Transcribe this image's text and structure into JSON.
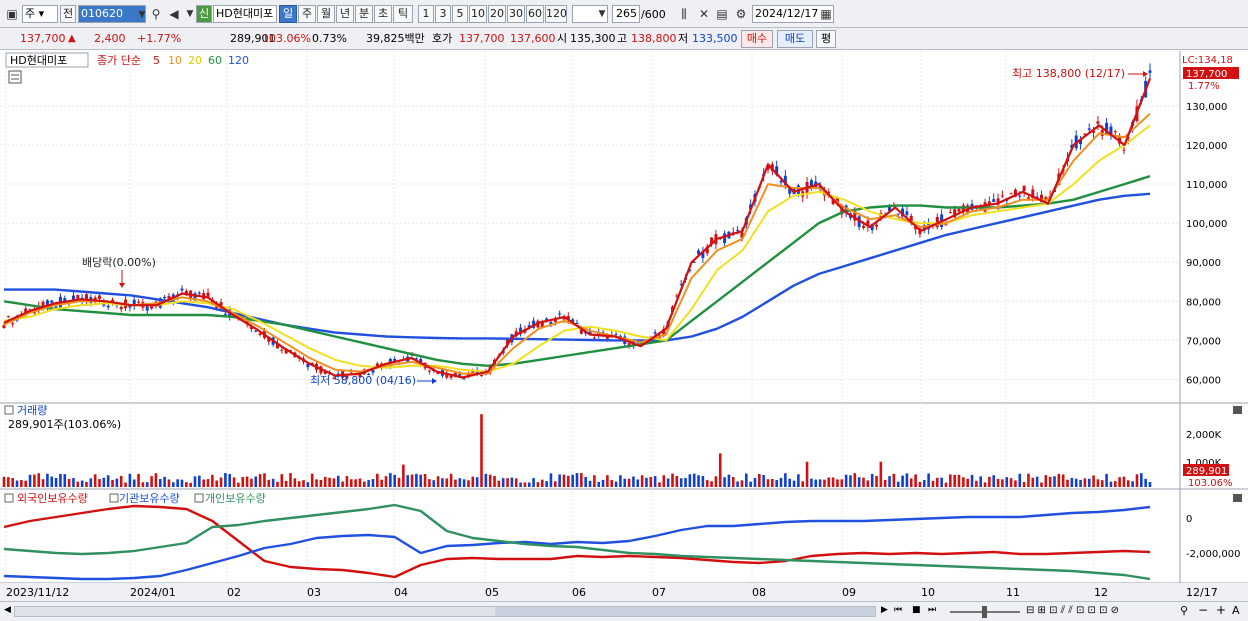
{
  "toolbar": {
    "market": "주",
    "prev_label": "전",
    "code": "010620",
    "new_badge": "신",
    "name": "HD현대미포",
    "periods": [
      "일",
      "주",
      "월",
      "년",
      "분",
      "초",
      "틱"
    ],
    "selected_period": "일",
    "intervals": [
      "1",
      "3",
      "5",
      "10",
      "20",
      "30",
      "60",
      "120"
    ],
    "count": "265",
    "count_total": "/600",
    "date": "2024/12/17"
  },
  "quote": {
    "price": "137,700",
    "arrow": "▲",
    "change": "2,400",
    "change_pct": "+1.77%",
    "volume": "289,901",
    "volume_ratio": "103.06%",
    "turnover": "0.73%",
    "amount": "39,825백만",
    "ask_label": "호가",
    "ask": "137,700",
    "bid": "137,600",
    "open_label": "시",
    "open": "135,300",
    "high_label": "고",
    "high": "138,800",
    "low_label": "저",
    "low": "133,500",
    "buy": "매수",
    "sell": "매도",
    "eval": "평"
  },
  "price_panel": {
    "name": "HD현대미포",
    "legend_title": "종가 단순",
    "ma": [
      {
        "period": "5",
        "color": "#d21010"
      },
      {
        "period": "10",
        "color": "#f09020"
      },
      {
        "period": "20",
        "color": "#f0e020"
      },
      {
        "period": "60",
        "color": "#209040"
      },
      {
        "period": "120",
        "color": "#2050e0"
      }
    ],
    "lc_label": "LC:134,18",
    "last_price": "137,700",
    "last_pct": "1.77%",
    "high_annotation": "최고 138,800 (12/17)",
    "low_annotation": "최저 58,800 (04/16)",
    "dividend_annotation": "배당락(0.00%)",
    "y_ticks": [
      "130,000",
      "120,000",
      "110,000",
      "100,000",
      "90,000",
      "80,000",
      "70,000",
      "60,000"
    ]
  },
  "volume_panel": {
    "title": "거래량",
    "value": "289,901주(103.06%)",
    "y_ticks": [
      "2,000K",
      "1,000K"
    ],
    "last_volume": "289,901",
    "last_pct": "103.06%"
  },
  "holding_panel": {
    "legend": [
      {
        "label": "외국인보유수량",
        "color": "#d21010"
      },
      {
        "label": "기관보유수량",
        "color": "#2050e0"
      },
      {
        "label": "개인보유수량",
        "color": "#309060"
      }
    ],
    "y_ticks": [
      "0",
      "-2,000,000"
    ]
  },
  "x_axis": {
    "labels": [
      "2023/11/12",
      "2024/01",
      "02",
      "03",
      "04",
      "05",
      "06",
      "07",
      "08",
      "09",
      "10",
      "11",
      "12"
    ],
    "end_label": "12/17"
  },
  "colors": {
    "up": "#d21010",
    "down": "#1040d0",
    "accent": "#3c78c8"
  },
  "chart_data": {
    "type": "line",
    "title": "HD현대미포",
    "ylim": [
      55000,
      142000
    ],
    "ma_series": [
      {
        "name": "5",
        "values": [
          74500,
          77500,
          79500,
          80500,
          80000,
          79000,
          79000,
          82000,
          81000,
          76500,
          72500,
          68000,
          64000,
          61000,
          61500,
          64000,
          65500,
          62000,
          60500,
          62000,
          71000,
          74500,
          76000,
          71500,
          71000,
          68500,
          73000,
          90000,
          96000,
          98000,
          115000,
          108000,
          110000,
          103000,
          99000,
          104000,
          98000,
          101000,
          104000,
          105000,
          108000,
          105000,
          120000,
          125000,
          120000,
          137000
        ]
      },
      {
        "name": "10",
        "values": [
          74000,
          77000,
          79000,
          80000,
          80000,
          79000,
          79500,
          81000,
          80000,
          77000,
          73500,
          69500,
          65500,
          62500,
          62000,
          63500,
          64500,
          63000,
          61500,
          61500,
          68000,
          73000,
          75000,
          72500,
          71000,
          69500,
          71500,
          86000,
          93000,
          96000,
          110000,
          109000,
          109000,
          104000,
          101000,
          102000,
          99000,
          100000,
          103000,
          104000,
          106000,
          106000,
          116000,
          123000,
          122000,
          128000
        ]
      },
      {
        "name": "20",
        "values": [
          75000,
          76000,
          78000,
          79000,
          79500,
          79000,
          79000,
          80000,
          79500,
          78000,
          75000,
          71500,
          68000,
          65000,
          63500,
          63000,
          63500,
          63500,
          62500,
          62000,
          64000,
          68500,
          72500,
          73500,
          72500,
          71000,
          70000,
          78000,
          88000,
          93000,
          103000,
          107000,
          108000,
          106000,
          103000,
          101000,
          100000,
          100000,
          102000,
          103000,
          104000,
          105000,
          110000,
          116000,
          120000,
          125000
        ]
      },
      {
        "name": "60",
        "values": [
          80000,
          79000,
          78000,
          77500,
          77000,
          76500,
          76500,
          76500,
          76500,
          76000,
          75000,
          74000,
          72500,
          71000,
          69500,
          68000,
          66500,
          65000,
          64000,
          63500,
          64000,
          65000,
          66000,
          67000,
          68000,
          69000,
          70000,
          75000,
          80000,
          85000,
          90000,
          95000,
          100000,
          103000,
          104000,
          104500,
          104500,
          104000,
          104000,
          104000,
          104500,
          105000,
          106000,
          108000,
          110000,
          112000
        ]
      },
      {
        "name": "120",
        "values": [
          83000,
          83000,
          83000,
          82500,
          82000,
          81500,
          80500,
          79500,
          78500,
          77000,
          75500,
          74000,
          73000,
          72000,
          71500,
          71000,
          70800,
          70600,
          70500,
          70500,
          70400,
          70300,
          70200,
          70100,
          70000,
          70000,
          70000,
          71000,
          73000,
          76000,
          80000,
          84000,
          87000,
          89000,
          91000,
          93000,
          95000,
          97000,
          98500,
          100000,
          101500,
          103000,
          104500,
          106000,
          107000,
          107500
        ]
      }
    ]
  }
}
